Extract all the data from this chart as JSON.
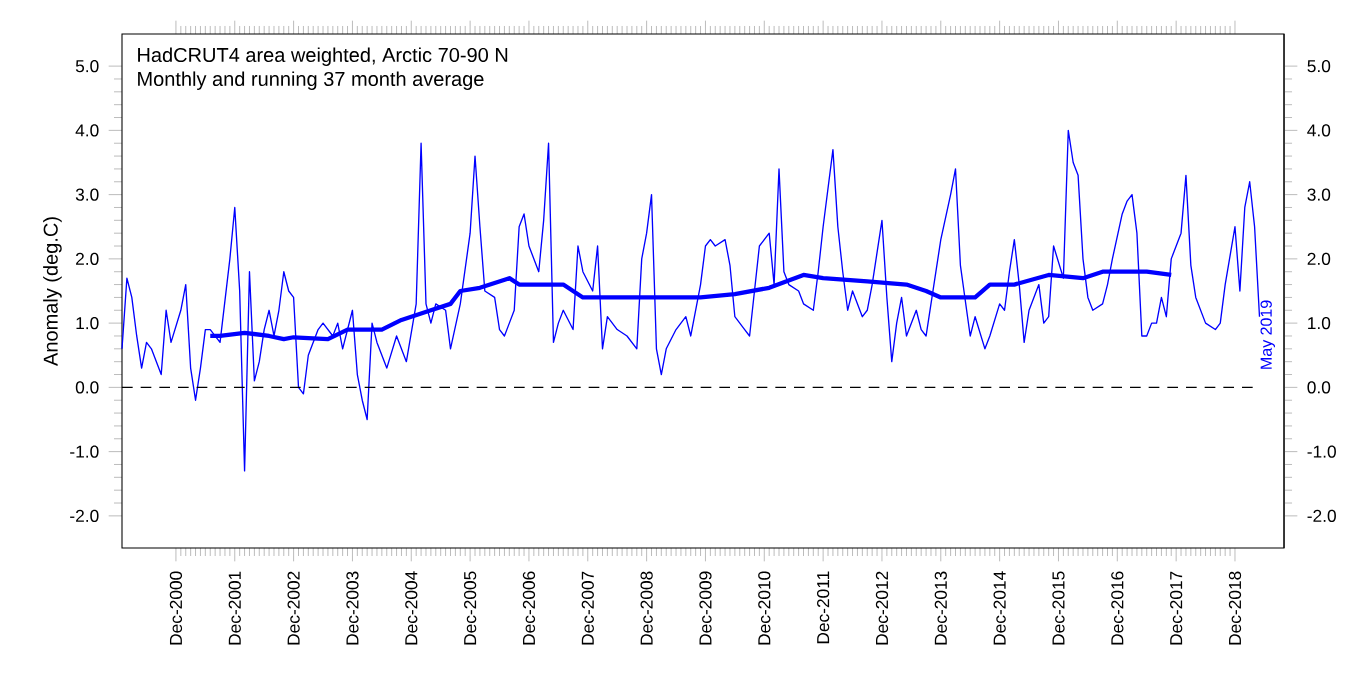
{
  "chart_data": {
    "type": "line",
    "title": "HadCRUT4 area weighted, Arctic 70-90 N",
    "subtitle": "Monthly and running 37 month average",
    "ylabel": "Anomaly (deg.C)",
    "annotations": [
      "May 2019"
    ],
    "xlim": [
      "2000-01",
      "2019-10"
    ],
    "xticks": [
      {
        "value": "2000-12",
        "label": "Dec-2000"
      },
      {
        "value": "2001-12",
        "label": "Dec-2001"
      },
      {
        "value": "2002-12",
        "label": "Dec-2002"
      },
      {
        "value": "2003-12",
        "label": "Dec-2003"
      },
      {
        "value": "2004-12",
        "label": "Dec-2004"
      },
      {
        "value": "2005-12",
        "label": "Dec-2005"
      },
      {
        "value": "2006-12",
        "label": "Dec-2006"
      },
      {
        "value": "2007-12",
        "label": "Dec-2007"
      },
      {
        "value": "2008-12",
        "label": "Dec-2008"
      },
      {
        "value": "2009-12",
        "label": "Dec-2009"
      },
      {
        "value": "2010-12",
        "label": "Dec-2010"
      },
      {
        "value": "2011-12",
        "label": "Dec-2011"
      },
      {
        "value": "2012-12",
        "label": "Dec-2012"
      },
      {
        "value": "2013-12",
        "label": "Dec-2013"
      },
      {
        "value": "2014-12",
        "label": "Dec-2014"
      },
      {
        "value": "2015-12",
        "label": "Dec-2015"
      },
      {
        "value": "2016-12",
        "label": "Dec-2016"
      },
      {
        "value": "2017-12",
        "label": "Dec-2017"
      },
      {
        "value": "2018-12",
        "label": "Dec-2018"
      }
    ],
    "ylim": [
      -2.5,
      5.5
    ],
    "yticks": [
      {
        "value": -2,
        "label": "-2.0"
      },
      {
        "value": -1,
        "label": "-1.0"
      },
      {
        "value": 0,
        "label": "0.0"
      },
      {
        "value": 1,
        "label": "1.0"
      },
      {
        "value": 2,
        "label": "2.0"
      },
      {
        "value": 3,
        "label": "3.0"
      },
      {
        "value": 4,
        "label": "4.0"
      },
      {
        "value": 5,
        "label": "5.0"
      }
    ],
    "y2lim": [
      -2.5,
      5.5
    ],
    "y2ticks": [
      {
        "value": -2,
        "label": "-2.0"
      },
      {
        "value": -1,
        "label": "-1.0"
      },
      {
        "value": 0,
        "label": "0.0"
      },
      {
        "value": 1,
        "label": "1.0"
      },
      {
        "value": 2,
        "label": "2.0"
      },
      {
        "value": 3,
        "label": "3.0"
      },
      {
        "value": 4,
        "label": "4.0"
      },
      {
        "value": 5,
        "label": "5.0"
      }
    ],
    "ref_lines": [
      {
        "axis": "y",
        "value": 0,
        "color": "#000000",
        "line_style": "dashed"
      }
    ],
    "grid": false,
    "marker": "none",
    "series": [
      {
        "color": "#0000ff",
        "line_style": "solid",
        "x": [
          "2000-01",
          "2000-02",
          "2000-03",
          "2000-04",
          "2000-05",
          "2000-06",
          "2000-07",
          "2000-09",
          "2000-10",
          "2000-11",
          "2001-01",
          "2001-02",
          "2001-03",
          "2001-04",
          "2001-05",
          "2001-06",
          "2001-07",
          "2001-09",
          "2001-11",
          "2001-12",
          "2002-01",
          "2002-02",
          "2002-03",
          "2002-04",
          "2002-05",
          "2002-06",
          "2002-07",
          "2002-08",
          "2002-09",
          "2002-10",
          "2002-11",
          "2002-12",
          "2003-01",
          "2003-02",
          "2003-03",
          "2003-05",
          "2003-06",
          "2003-08",
          "2003-09",
          "2003-10",
          "2003-12",
          "2004-01",
          "2004-02",
          "2004-03",
          "2004-04",
          "2004-05",
          "2004-07",
          "2004-09",
          "2004-10",
          "2004-11",
          "2005-01",
          "2005-02",
          "2005-03",
          "2005-04",
          "2005-05",
          "2005-07",
          "2005-08",
          "2005-10",
          "2005-12",
          "2006-01",
          "2006-02",
          "2006-03",
          "2006-05",
          "2006-06",
          "2006-07",
          "2006-08",
          "2006-09",
          "2006-10",
          "2006-11",
          "2006-12",
          "2007-01",
          "2007-02",
          "2007-03",
          "2007-04",
          "2007-05",
          "2007-06",
          "2007-07",
          "2007-09",
          "2007-10",
          "2007-11",
          "2008-01",
          "2008-02",
          "2008-03",
          "2008-04",
          "2008-06",
          "2008-08",
          "2008-10",
          "2008-11",
          "2008-12",
          "2009-01",
          "2009-02",
          "2009-03",
          "2009-04",
          "2009-06",
          "2009-08",
          "2009-09",
          "2009-10",
          "2009-11",
          "2009-12",
          "2010-01",
          "2010-02",
          "2010-04",
          "2010-05",
          "2010-06",
          "2010-08",
          "2010-09",
          "2010-10",
          "2010-11",
          "2011-01",
          "2011-02",
          "2011-03",
          "2011-04",
          "2011-05",
          "2011-07",
          "2011-08",
          "2011-10",
          "2011-11",
          "2011-12",
          "2012-02",
          "2012-03",
          "2012-04",
          "2012-05",
          "2012-06",
          "2012-08",
          "2012-09",
          "2012-10",
          "2012-12",
          "2013-01",
          "2013-02",
          "2013-03",
          "2013-04",
          "2013-05",
          "2013-07",
          "2013-08",
          "2013-09",
          "2013-11",
          "2013-12",
          "2014-02",
          "2014-03",
          "2014-04",
          "2014-06",
          "2014-07",
          "2014-09",
          "2014-10",
          "2014-12",
          "2015-01",
          "2015-02",
          "2015-03",
          "2015-04",
          "2015-05",
          "2015-06",
          "2015-08",
          "2015-09",
          "2015-10",
          "2015-11",
          "2016-01",
          "2016-02",
          "2016-03",
          "2016-04",
          "2016-05",
          "2016-06",
          "2016-07",
          "2016-09",
          "2016-10",
          "2016-11",
          "2017-01",
          "2017-02",
          "2017-03",
          "2017-04",
          "2017-05",
          "2017-06",
          "2017-07",
          "2017-08",
          "2017-09",
          "2017-10",
          "2017-11",
          "2018-01",
          "2018-02",
          "2018-03",
          "2018-04",
          "2018-05",
          "2018-06",
          "2018-08",
          "2018-09",
          "2018-10",
          "2018-12",
          "2019-01",
          "2019-02",
          "2019-03",
          "2019-04",
          "2019-05"
        ],
        "values": [
          0.6,
          1.7,
          1.4,
          0.8,
          0.3,
          0.7,
          0.6,
          0.2,
          1.2,
          0.7,
          1.2,
          1.6,
          0.3,
          -0.2,
          0.3,
          0.9,
          0.9,
          0.7,
          2.0,
          2.8,
          1.5,
          -1.3,
          1.8,
          0.1,
          0.4,
          0.9,
          1.2,
          0.8,
          1.2,
          1.8,
          1.5,
          1.4,
          0.0,
          -0.1,
          0.5,
          0.9,
          1.0,
          0.8,
          1.0,
          0.6,
          1.2,
          0.2,
          -0.2,
          -0.5,
          1.0,
          0.7,
          0.3,
          0.8,
          0.6,
          0.4,
          1.3,
          3.8,
          1.3,
          1.0,
          1.3,
          1.2,
          0.6,
          1.3,
          2.4,
          3.6,
          2.5,
          1.5,
          1.4,
          0.9,
          0.8,
          1.0,
          1.2,
          2.5,
          2.7,
          2.2,
          2.0,
          1.8,
          2.6,
          3.8,
          0.7,
          1.0,
          1.2,
          0.9,
          2.2,
          1.8,
          1.5,
          2.2,
          0.6,
          1.1,
          0.9,
          0.8,
          0.6,
          2.0,
          2.4,
          3.0,
          0.6,
          0.2,
          0.6,
          0.9,
          1.1,
          0.8,
          1.2,
          1.6,
          2.2,
          2.3,
          2.2,
          2.3,
          1.9,
          1.1,
          0.9,
          0.8,
          1.5,
          2.2,
          2.4,
          1.6,
          3.4,
          1.8,
          1.6,
          1.5,
          1.3,
          1.2,
          1.8,
          2.5,
          3.7,
          2.5,
          1.8,
          1.2,
          1.5,
          1.1,
          1.2,
          1.6,
          2.6,
          1.4,
          0.4,
          1.0,
          1.4,
          0.8,
          1.2,
          0.9,
          0.8,
          1.8,
          2.3,
          3.0,
          3.4,
          1.9,
          0.8,
          1.1,
          0.6,
          0.8,
          1.3,
          1.2,
          1.8,
          2.3,
          1.6,
          0.7,
          1.2,
          1.6,
          1.0,
          1.1,
          2.2,
          1.7,
          4.0,
          3.5,
          3.3,
          2.0,
          1.4,
          1.2,
          1.3,
          1.6,
          2.0,
          2.7,
          2.9,
          3.0,
          2.4,
          0.8,
          0.8,
          1.0,
          1.0,
          1.4,
          1.1,
          2.0,
          2.4,
          3.3,
          1.9,
          1.4,
          1.2,
          1.0,
          0.9,
          1.0,
          1.6,
          2.5,
          1.5,
          2.8,
          3.2,
          2.5,
          1.1
        ]
      },
      {
        "color": "#0000ff",
        "line_style": "solid",
        "x": [
          "2001-07",
          "2001-09",
          "2002-02",
          "2002-07",
          "2002-10",
          "2002-12",
          "2003-07",
          "2003-11",
          "2004-06",
          "2004-10",
          "2005-04",
          "2005-08",
          "2005-10",
          "2006-02",
          "2006-08",
          "2006-10",
          "2007-07",
          "2007-11",
          "2008-10",
          "2009-11",
          "2010-06",
          "2011-01",
          "2011-08",
          "2011-12",
          "2012-09",
          "2013-05",
          "2013-09",
          "2013-12",
          "2014-07",
          "2014-10",
          "2015-03",
          "2015-10",
          "2016-05",
          "2016-09",
          "2017-06",
          "2017-11"
        ],
        "values": [
          0.8,
          0.8,
          0.85,
          0.8,
          0.75,
          0.78,
          0.75,
          0.9,
          0.9,
          1.05,
          1.2,
          1.3,
          1.5,
          1.55,
          1.7,
          1.6,
          1.6,
          1.4,
          1.4,
          1.4,
          1.45,
          1.55,
          1.75,
          1.7,
          1.65,
          1.6,
          1.5,
          1.4,
          1.4,
          1.6,
          1.6,
          1.75,
          1.7,
          1.8,
          1.8,
          1.75
        ]
      }
    ]
  }
}
